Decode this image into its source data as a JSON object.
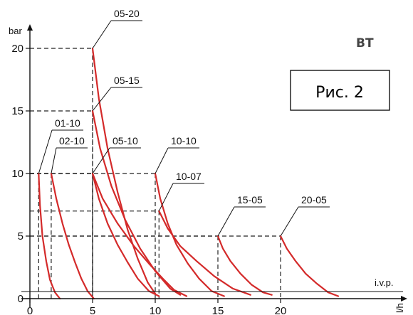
{
  "chart_data": {
    "type": "line",
    "ylabel": "bar",
    "xlabel": "l/h",
    "x_baseline_label": "i.v.p.",
    "xlim": [
      0,
      25
    ],
    "ylim": [
      0,
      22
    ],
    "x_ticks": [
      0,
      5,
      10,
      15,
      20
    ],
    "y_ticks": [
      0,
      5,
      10,
      15,
      20
    ],
    "grid": false,
    "annotations": {
      "badge": "BT",
      "figure_label": "Рис. 2"
    },
    "colors": {
      "curve": "#d42a2a",
      "axis": "#111111",
      "guide": "#222222"
    },
    "series": [
      {
        "name": "01-10",
        "x": [
          0.7,
          0.8,
          1.0,
          1.3,
          1.6,
          2.0,
          2.4
        ],
        "y": [
          10,
          7.5,
          5,
          3,
          1.5,
          0.5,
          0
        ]
      },
      {
        "name": "02-10",
        "x": [
          1.7,
          2.1,
          2.6,
          3.1,
          3.6,
          4.1,
          4.6,
          5.1
        ],
        "y": [
          10,
          8,
          6,
          4.3,
          2.9,
          1.6,
          0.6,
          0
        ]
      },
      {
        "name": "05-20",
        "x": [
          5.0,
          5.5,
          6.2,
          7.0,
          7.8,
          8.6,
          9.4,
          10.0
        ],
        "y": [
          20,
          16,
          12,
          8.5,
          5.5,
          3.2,
          1.3,
          0.4
        ]
      },
      {
        "name": "05-15",
        "x": [
          5.0,
          5.6,
          6.5,
          7.6,
          8.8,
          10.0,
          11.2,
          12.0
        ],
        "y": [
          15,
          12,
          9,
          6.3,
          4,
          2.2,
          0.8,
          0.3
        ]
      },
      {
        "name": "05-10",
        "x": [
          5.0,
          5.5,
          6.2,
          7.0,
          7.8,
          8.6,
          9.5,
          10.3
        ],
        "y": [
          10,
          8,
          6,
          4.3,
          2.9,
          1.6,
          0.6,
          0.2
        ]
      },
      {
        "name": "05-10",
        "x": [
          5.0,
          5.8,
          7.0,
          8.3,
          9.5,
          10.6,
          11.5,
          12.5
        ],
        "y": [
          10,
          8,
          6,
          4.2,
          2.8,
          1.6,
          0.7,
          0.2
        ]
      },
      {
        "name": "10-10",
        "x": [
          10.0,
          10.4,
          11.0,
          11.7,
          12.6,
          13.5,
          14.5,
          15.5
        ],
        "y": [
          10,
          8,
          6,
          4.3,
          2.8,
          1.6,
          0.6,
          0.2
        ]
      },
      {
        "name": "10-07",
        "x": [
          10.3,
          11.0,
          12.0,
          13.3,
          14.7,
          16.2,
          17.6
        ],
        "y": [
          7,
          5.6,
          4.2,
          3,
          1.8,
          0.8,
          0.3
        ]
      },
      {
        "name": "15-05",
        "x": [
          15.0,
          15.4,
          16.0,
          16.8,
          17.7,
          18.6,
          19.3
        ],
        "y": [
          5,
          4,
          3,
          2,
          1.1,
          0.5,
          0.3
        ]
      },
      {
        "name": "20-05",
        "x": [
          20.0,
          20.5,
          21.2,
          22.0,
          22.9,
          23.8,
          24.6
        ],
        "y": [
          5,
          4,
          3,
          2,
          1.2,
          0.5,
          0.2
        ]
      }
    ],
    "series_label_text": [
      "05-20",
      "05-15",
      "01-10",
      "02-10",
      "05-10",
      "10-10",
      "10-07",
      "15-05",
      "20-05"
    ]
  }
}
